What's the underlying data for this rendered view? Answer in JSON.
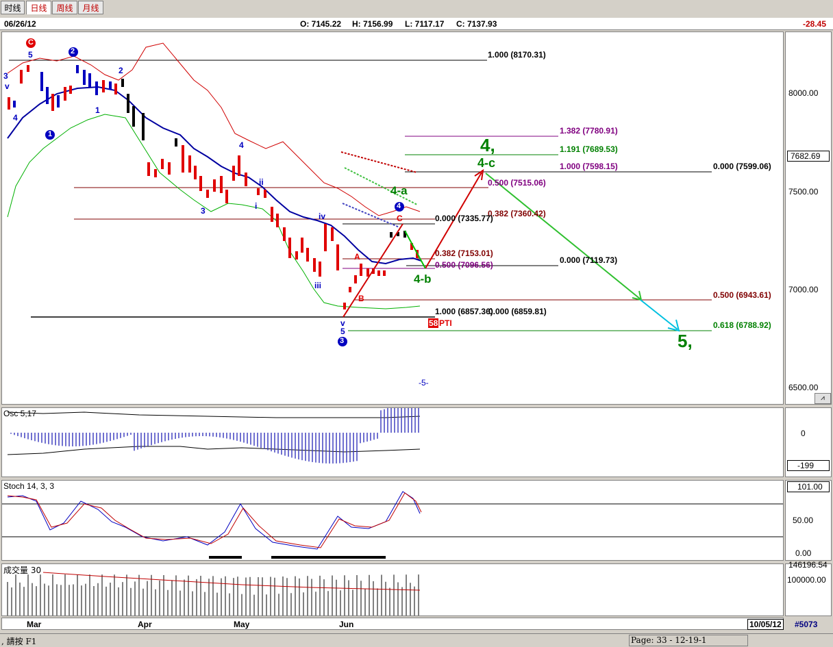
{
  "tabs": [
    {
      "label": "时线",
      "state": "disabled"
    },
    {
      "label": "日线",
      "state": "active"
    },
    {
      "label": "周线",
      "state": "normal"
    },
    {
      "label": "月线",
      "state": "normal"
    }
  ],
  "header": {
    "date": "06/26/12",
    "open": "O: 7145.22",
    "high": "H: 7156.99",
    "low": "L: 7117.17",
    "close": "C: 7137.93",
    "change": "-28.45"
  },
  "main_chart": {
    "y_ticks": [
      "8000.00",
      "7500.00",
      "7000.00",
      "6500.00"
    ],
    "last_price": "7682.69",
    "fib_levels": [
      {
        "text": "1.000 (8170.31)",
        "color": "#000000"
      },
      {
        "text": "1.382 (7780.91)",
        "color": "#800080"
      },
      {
        "text": "1.191 (7689.53)",
        "color": "#008000"
      },
      {
        "text": "1.000 (7598.15)",
        "color": "#800080"
      },
      {
        "text": "0.000 (7599.06)",
        "color": "#000000"
      },
      {
        "text": "0.500 (7515.06)",
        "color": "#800080"
      },
      {
        "text": "0.382 (7360.42)",
        "color": "#800000"
      },
      {
        "text": "0.000 (7335.77)",
        "color": "#000000"
      },
      {
        "text": "0.382 (7153.01)",
        "color": "#800000"
      },
      {
        "text": "0.500 (7096.56)",
        "color": "#800080"
      },
      {
        "text": "0.000 (7119.73)",
        "color": "#000000"
      },
      {
        "text": "0.500 (6943.61)",
        "color": "#800000"
      },
      {
        "text": "1.000 (6857.36)",
        "color": "#000000"
      },
      {
        "text": "0.000 (6859.81)",
        "color": "#000000"
      },
      {
        "text": "0.618 (6788.92)",
        "color": "#008000"
      }
    ],
    "wave_labels": {
      "w4": "4,",
      "w4c": "4-c",
      "w4a": "4-a",
      "w4b": "4-b",
      "w5": "5,",
      "circle1": "1",
      "circle2": "2",
      "circle3": "3",
      "circle4": "4",
      "circleC": "C",
      "iv": "iv",
      "iii": "iii",
      "ii": "ii",
      "i": "i",
      "v": "v",
      "n5": "5",
      "n4": "4",
      "n3": "3",
      "n2": "2",
      "n1": "1",
      "A": "A",
      "B": "B",
      "C": "C",
      "pti_num": "58",
      "pti": "PTI",
      "page_marker": "-5-"
    }
  },
  "osc": {
    "title": "Osc 5,17",
    "tick": "0",
    "value": "-199"
  },
  "stoch": {
    "title": "Stoch 14, 3, 3",
    "value": "101.00",
    "ticks": [
      "50.00",
      "0.00"
    ]
  },
  "volume": {
    "title": "成交量 30",
    "top_value": "146196.54",
    "tick": "100000.00"
  },
  "x_axis": {
    "months": [
      "Mar",
      "Apr",
      "May",
      "Jun"
    ],
    "date": "10/05/12",
    "id": "#5073"
  },
  "status": {
    "help": ", 請按 F1",
    "page": "Page: 33 - 12-19-1"
  },
  "colors": {
    "up_candle": "#e00000",
    "down_candle": "#0000c0",
    "ma_blue": "#0000a0",
    "band_red": "#d00000",
    "band_green": "#00b000"
  }
}
